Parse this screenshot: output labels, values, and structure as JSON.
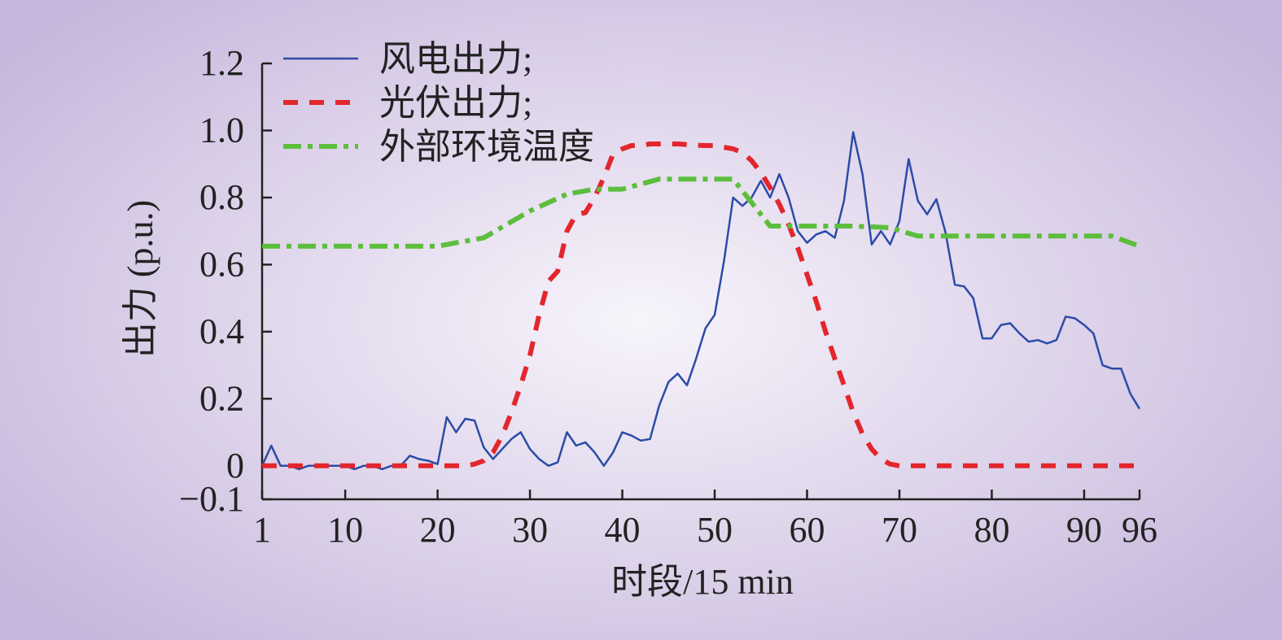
{
  "chart_data": {
    "type": "line",
    "xlabel": "时段/15 min",
    "ylabel": "出力 (p.u.)",
    "xlim": [
      1,
      96
    ],
    "ylim": [
      -0.1,
      1.2
    ],
    "x_ticks": [
      1,
      10,
      20,
      30,
      40,
      50,
      60,
      70,
      80,
      90,
      96
    ],
    "y_ticks": [
      {
        "value": -0.1,
        "label": "−0.1"
      },
      {
        "value": 0,
        "label": "0"
      },
      {
        "value": 0.2,
        "label": "0.2"
      },
      {
        "value": 0.4,
        "label": "0.4"
      },
      {
        "value": 0.6,
        "label": "0.6"
      },
      {
        "value": 0.8,
        "label": "0.8"
      },
      {
        "value": 1.0,
        "label": "1.0"
      },
      {
        "value": 1.2,
        "label": "1.2"
      }
    ],
    "grid": false,
    "legend_position": "top-left",
    "series": [
      {
        "name": "风电出力;",
        "color": "#2b4ba8",
        "style": "solid",
        "x": [
          1,
          2,
          3,
          4,
          5,
          6,
          7,
          8,
          9,
          10,
          11,
          12,
          13,
          14,
          15,
          16,
          17,
          18,
          19,
          20,
          21,
          22,
          23,
          24,
          25,
          26,
          27,
          28,
          29,
          30,
          31,
          32,
          33,
          34,
          35,
          36,
          37,
          38,
          39,
          40,
          41,
          42,
          43,
          44,
          45,
          46,
          47,
          48,
          49,
          50,
          51,
          52,
          53,
          54,
          55,
          56,
          57,
          58,
          59,
          60,
          61,
          62,
          63,
          64,
          65,
          66,
          67,
          68,
          69,
          70,
          71,
          72,
          73,
          74,
          75,
          76,
          77,
          78,
          79,
          80,
          81,
          82,
          83,
          84,
          85,
          86,
          87,
          88,
          89,
          90,
          91,
          92,
          93,
          94,
          95,
          96
        ],
        "values": [
          0,
          0.06,
          0,
          0,
          -0.01,
          0,
          0,
          0,
          0,
          0,
          -0.01,
          0,
          0,
          -0.01,
          0,
          0,
          0.03,
          0.02,
          0.015,
          0.005,
          0.145,
          0.1,
          0.14,
          0.135,
          0.055,
          0.02,
          0.05,
          0.08,
          0.1,
          0.05,
          0.02,
          0,
          0.01,
          0.1,
          0.06,
          0.07,
          0.04,
          0,
          0.04,
          0.1,
          0.09,
          0.075,
          0.08,
          0.18,
          0.25,
          0.275,
          0.24,
          0.32,
          0.41,
          0.45,
          0.61,
          0.8,
          0.775,
          0.8,
          0.85,
          0.8,
          0.87,
          0.8,
          0.7,
          0.665,
          0.69,
          0.7,
          0.68,
          0.79,
          0.995,
          0.87,
          0.66,
          0.7,
          0.66,
          0.73,
          0.915,
          0.79,
          0.75,
          0.795,
          0.695,
          0.54,
          0.535,
          0.5,
          0.38,
          0.38,
          0.42,
          0.425,
          0.395,
          0.37,
          0.375,
          0.365,
          0.375,
          0.445,
          0.44,
          0.42,
          0.395,
          0.3,
          0.29,
          0.29,
          0.215,
          0.17
        ]
      },
      {
        "name": "光伏出力;",
        "color": "#e3262d",
        "style": "dashed",
        "x": [
          1,
          5,
          10,
          15,
          20,
          23,
          24,
          25,
          26,
          27,
          28,
          29,
          30,
          31,
          32,
          33,
          34,
          35,
          36,
          37,
          38,
          39,
          40,
          41,
          42,
          43,
          44,
          45,
          46,
          47,
          48,
          49,
          50,
          51,
          52,
          53,
          54,
          55,
          56,
          57,
          58,
          59,
          60,
          61,
          62,
          63,
          64,
          65,
          66,
          67,
          68,
          69,
          70,
          71,
          72,
          73,
          74,
          75,
          80,
          85,
          90,
          96
        ],
        "values": [
          0,
          0,
          0,
          0,
          0,
          0,
          0.005,
          0.015,
          0.04,
          0.09,
          0.16,
          0.24,
          0.33,
          0.45,
          0.55,
          0.58,
          0.7,
          0.75,
          0.755,
          0.8,
          0.86,
          0.93,
          0.945,
          0.955,
          0.955,
          0.96,
          0.96,
          0.96,
          0.96,
          0.958,
          0.956,
          0.955,
          0.955,
          0.95,
          0.945,
          0.935,
          0.91,
          0.875,
          0.83,
          0.78,
          0.72,
          0.65,
          0.57,
          0.49,
          0.4,
          0.32,
          0.24,
          0.16,
          0.095,
          0.05,
          0.02,
          0.005,
          0,
          0,
          0,
          0,
          0,
          0,
          0,
          0,
          0,
          0
        ]
      },
      {
        "name": "外部环境温度",
        "color": "#5cbe3c",
        "style": "dashdot",
        "x": [
          1,
          10,
          20,
          25,
          30,
          34,
          37,
          40,
          44,
          48,
          52,
          56,
          60,
          65,
          69,
          72,
          76,
          80,
          85,
          90,
          93,
          96
        ],
        "values": [
          0.655,
          0.655,
          0.655,
          0.68,
          0.76,
          0.81,
          0.825,
          0.825,
          0.855,
          0.855,
          0.855,
          0.715,
          0.715,
          0.715,
          0.71,
          0.685,
          0.685,
          0.685,
          0.685,
          0.685,
          0.685,
          0.655
        ]
      }
    ]
  }
}
